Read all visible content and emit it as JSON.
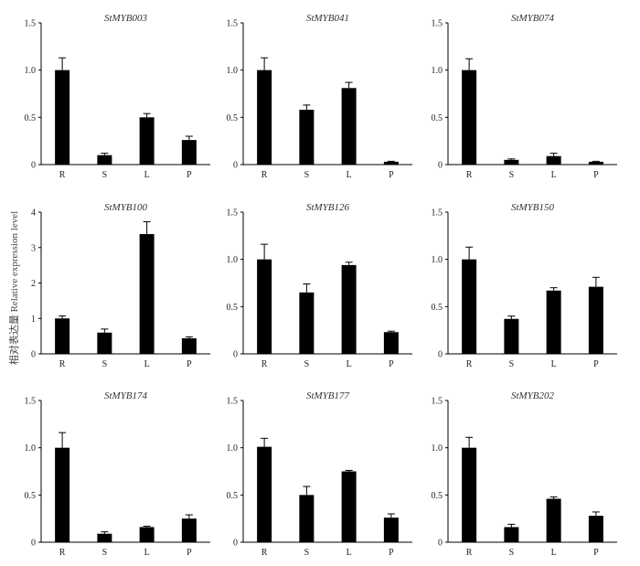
{
  "figure": {
    "ylabel": "相对表达量 Relative expression level"
  },
  "chart_data": [
    {
      "type": "bar",
      "title": "StMYB003",
      "categories": [
        "R",
        "S",
        "L",
        "P"
      ],
      "values": [
        1.0,
        0.1,
        0.5,
        0.26
      ],
      "errors": [
        0.13,
        0.02,
        0.04,
        0.04
      ],
      "ylim": [
        0,
        1.5
      ],
      "yticks": [
        "0",
        "0.5",
        "1.0",
        "1.5"
      ],
      "bar_color": "#000000"
    },
    {
      "type": "bar",
      "title": "StMYB041",
      "categories": [
        "R",
        "S",
        "L",
        "P"
      ],
      "values": [
        1.0,
        0.58,
        0.81,
        0.03
      ],
      "errors": [
        0.13,
        0.05,
        0.06,
        0.005
      ],
      "ylim": [
        0,
        1.5
      ],
      "yticks": [
        "0",
        "0.5",
        "1.0",
        "1.5"
      ],
      "bar_color": "#000000"
    },
    {
      "type": "bar",
      "title": "StMYB074",
      "categories": [
        "R",
        "S",
        "L",
        "P"
      ],
      "values": [
        1.0,
        0.05,
        0.09,
        0.03
      ],
      "errors": [
        0.12,
        0.01,
        0.03,
        0.005
      ],
      "ylim": [
        0,
        1.5
      ],
      "yticks": [
        "0",
        "0.5",
        "1.0",
        "1.5"
      ],
      "bar_color": "#000000"
    },
    {
      "type": "bar",
      "title": "StMYB100",
      "categories": [
        "R",
        "S",
        "L",
        "P"
      ],
      "values": [
        1.0,
        0.6,
        3.38,
        0.44
      ],
      "errors": [
        0.07,
        0.1,
        0.35,
        0.04
      ],
      "ylim": [
        0,
        4
      ],
      "yticks": [
        "0",
        "1",
        "2",
        "3",
        "4"
      ],
      "bar_color": "#000000"
    },
    {
      "type": "bar",
      "title": "StMYB126",
      "categories": [
        "R",
        "S",
        "L",
        "P"
      ],
      "values": [
        1.0,
        0.65,
        0.94,
        0.23
      ],
      "errors": [
        0.16,
        0.09,
        0.03,
        0.01
      ],
      "ylim": [
        0,
        1.5
      ],
      "yticks": [
        "0",
        "0.5",
        "1.0",
        "1.5"
      ],
      "bar_color": "#000000"
    },
    {
      "type": "bar",
      "title": "StMYB150",
      "categories": [
        "R",
        "S",
        "L",
        "P"
      ],
      "values": [
        1.0,
        0.37,
        0.67,
        0.71
      ],
      "errors": [
        0.13,
        0.03,
        0.03,
        0.1
      ],
      "ylim": [
        0,
        1.5
      ],
      "yticks": [
        "0",
        "0.5",
        "1.0",
        "1.5"
      ],
      "bar_color": "#000000"
    },
    {
      "type": "bar",
      "title": "StMYB174",
      "categories": [
        "R",
        "S",
        "L",
        "P"
      ],
      "values": [
        1.0,
        0.09,
        0.16,
        0.25
      ],
      "errors": [
        0.16,
        0.02,
        0.01,
        0.04
      ],
      "ylim": [
        0,
        1.5
      ],
      "yticks": [
        "0",
        "0.5",
        "1.0",
        "1.5"
      ],
      "bar_color": "#000000"
    },
    {
      "type": "bar",
      "title": "StMYB177",
      "categories": [
        "R",
        "S",
        "L",
        "P"
      ],
      "values": [
        1.01,
        0.5,
        0.75,
        0.26
      ],
      "errors": [
        0.09,
        0.09,
        0.01,
        0.04
      ],
      "ylim": [
        0,
        1.5
      ],
      "yticks": [
        "0",
        "0.5",
        "1.0",
        "1.5"
      ],
      "bar_color": "#000000"
    },
    {
      "type": "bar",
      "title": "StMYB202",
      "categories": [
        "R",
        "S",
        "L",
        "P"
      ],
      "values": [
        1.0,
        0.16,
        0.46,
        0.28
      ],
      "errors": [
        0.11,
        0.03,
        0.02,
        0.04
      ],
      "ylim": [
        0,
        1.5
      ],
      "yticks": [
        "0",
        "0.5",
        "1.0",
        "1.5"
      ],
      "bar_color": "#000000"
    }
  ]
}
